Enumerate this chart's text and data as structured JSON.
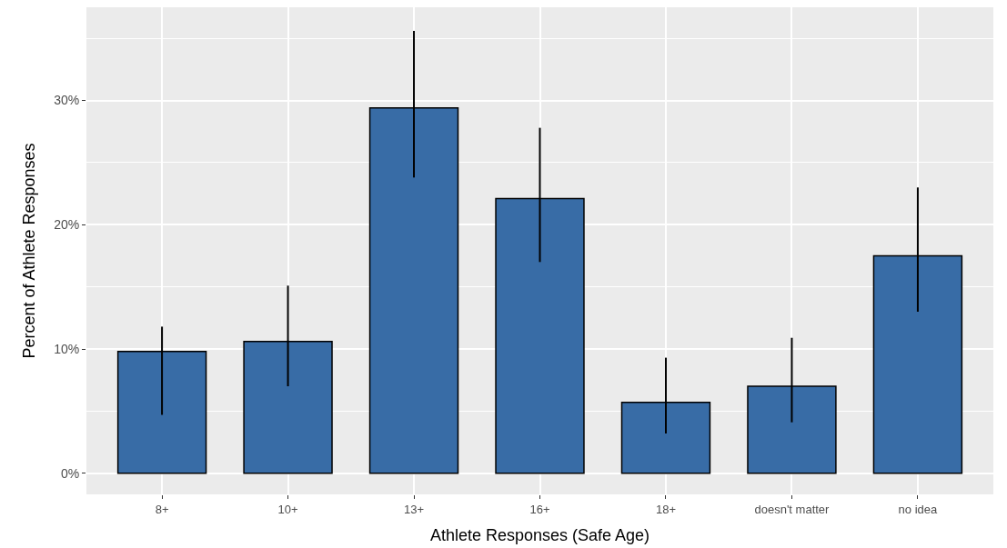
{
  "chart_data": {
    "type": "bar",
    "xlabel": "Athlete Responses (Safe Age)",
    "ylabel": "Percent of Athlete Responses",
    "categories": [
      "8+",
      "10+",
      "13+",
      "16+",
      "18+",
      "doesn't matter",
      "no idea"
    ],
    "values": [
      9.8,
      10.6,
      29.4,
      22.1,
      5.7,
      7.0,
      17.5
    ],
    "errors": [
      [
        4.7,
        11.8
      ],
      [
        7.0,
        15.1
      ],
      [
        23.8,
        35.6
      ],
      [
        17.0,
        27.8
      ],
      [
        3.2,
        9.3
      ],
      [
        4.1,
        10.9
      ],
      [
        13.0,
        23.0
      ]
    ],
    "color": "#386ca6",
    "ylim": [
      -1.7,
      37.5
    ],
    "yticks": [
      {
        "value": 0,
        "label": "0%"
      },
      {
        "value": 10,
        "label": "10%"
      },
      {
        "value": 20,
        "label": "20%"
      },
      {
        "value": 30,
        "label": "30%"
      }
    ],
    "grid": true
  }
}
